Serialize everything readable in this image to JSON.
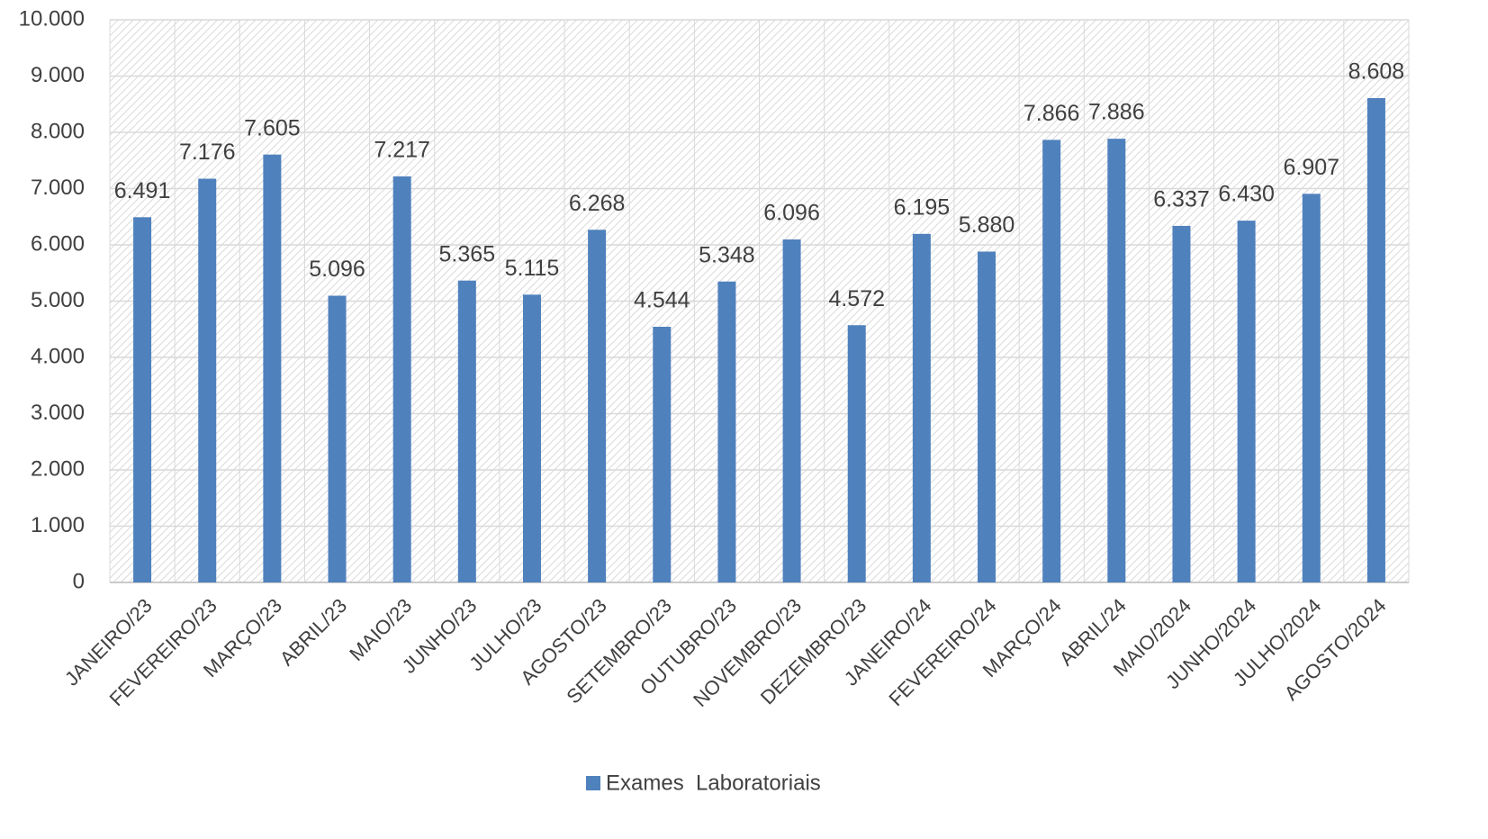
{
  "chart_data": {
    "type": "bar",
    "categories": [
      "JANEIRO/23",
      "FEVEREIRO/23",
      "MARÇO/23",
      "ABRIL/23",
      "MAIO/23",
      "JUNHO/23",
      "JULHO/23",
      "AGOSTO/23",
      "SETEMBRO/23",
      "OUTUBRO/23",
      "NOVEMBRO/23",
      "DEZEMBRO/23",
      "JANEIRO/24",
      "FEVEREIRO/24",
      "MARÇO/24",
      "ABRIL/24",
      "MAIO/2024",
      "JUNHO/2024",
      "JULHO/2024",
      "AGOSTO/2024"
    ],
    "series": [
      {
        "name": "Exames  Laboratoriais",
        "color": "#4f81bd",
        "values": [
          6491,
          7176,
          7605,
          5096,
          7217,
          5365,
          5115,
          6268,
          4544,
          5348,
          6096,
          4572,
          6195,
          5880,
          7866,
          7886,
          6337,
          6430,
          6907,
          8608
        ],
        "value_labels": [
          "6.491",
          "7.176",
          "7.605",
          "5.096",
          "7.217",
          "5.365",
          "5.115",
          "6.268",
          "4.544",
          "5.348",
          "6.096",
          "4.572",
          "6.195",
          "5.880",
          "7.866",
          "7.886",
          "6.337",
          "6.430",
          "6.907",
          "8.608"
        ]
      }
    ],
    "ylim": [
      0,
      10000
    ],
    "yticks": [
      0,
      {
        "value": 1000,
        "label": "1.000"
      },
      {
        "value": 2000,
        "label": "2.000"
      },
      {
        "value": 3000,
        "label": "3.000"
      },
      {
        "value": 4000,
        "label": "4.000"
      },
      {
        "value": 5000,
        "label": "5.000"
      },
      {
        "value": 6000,
        "label": "6.000"
      },
      {
        "value": 7000,
        "label": "7.000"
      },
      {
        "value": 8000,
        "label": "8.000"
      },
      {
        "value": 9000,
        "label": "9.000"
      },
      {
        "value": 10000,
        "label": "10.000"
      }
    ],
    "grid": true,
    "legend": "bottom"
  }
}
